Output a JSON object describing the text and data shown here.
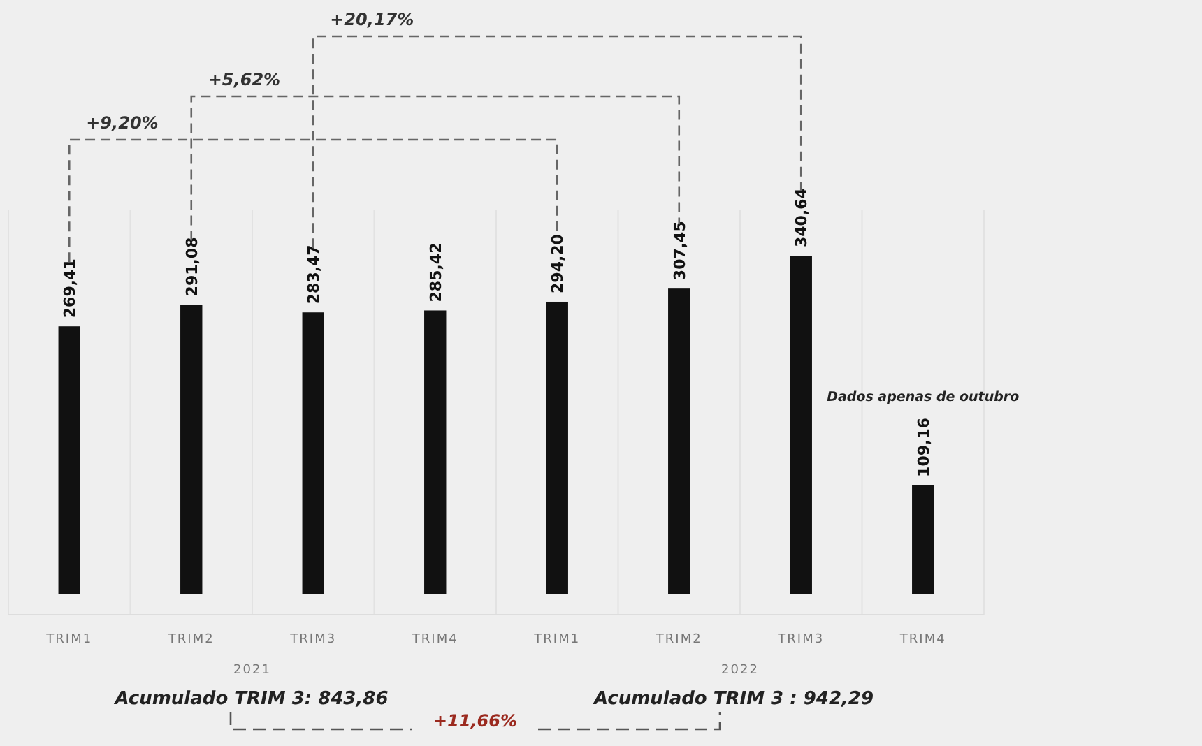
{
  "chart_data": {
    "type": "bar",
    "categories": [
      "TRIM1",
      "TRIM2",
      "TRIM3",
      "TRIM4",
      "TRIM1",
      "TRIM2",
      "TRIM3",
      "TRIM4"
    ],
    "values": [
      269.41,
      291.08,
      283.47,
      285.42,
      294.2,
      307.45,
      340.64,
      109.16
    ],
    "value_labels": [
      "269,41",
      "291,08",
      "283,47",
      "285,42",
      "294,20",
      "307,45",
      "340,64",
      "109,16"
    ],
    "color": "#111111",
    "annotations": [
      "2021",
      "2022",
      "+9,20%",
      "+5,62%",
      "+20,17%",
      "Dados apenas de outubro",
      "Acumulado TRIM 3: 843,86",
      "Acumulado TRIM 3 : 942,29",
      "+11,66%"
    ]
  }
}
